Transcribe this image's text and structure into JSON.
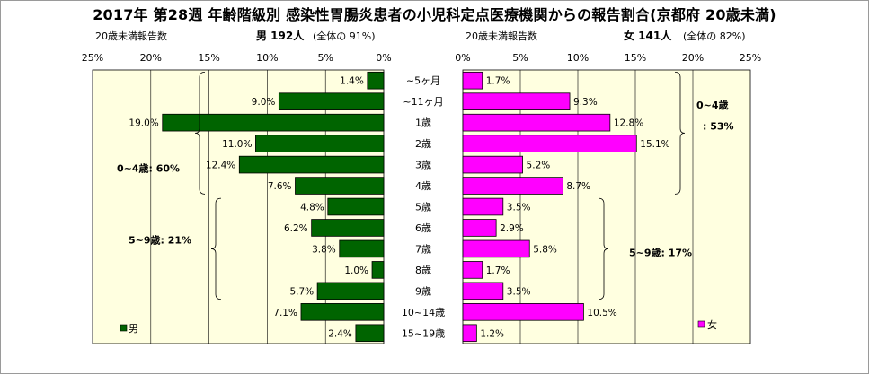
{
  "title": "2017年 第28週 年齢階級別 感染性胃腸炎患者の小児科定点医療機関からの報告割合(京都府 20歳未満)",
  "colors": {
    "male": "#006400",
    "female": "#ff00ff",
    "panel_bg": "#ffffe0",
    "border": "#000000"
  },
  "chart_data": [
    {
      "type": "bar",
      "orientation": "horizontal",
      "direction": "right-to-left",
      "header_left": "20歳未満報告数",
      "header_right": "男 192人",
      "header_share": "(全体の 91%)",
      "legend": "男",
      "xlim": [
        0,
        25
      ],
      "ticks": [
        "25%",
        "20%",
        "15%",
        "10%",
        "5%",
        "0%"
      ],
      "tick_values": [
        25,
        20,
        15,
        10,
        5,
        0
      ],
      "categories": [
        "~5ヶ月",
        "~11ヶ月",
        "1歳",
        "2歳",
        "3歳",
        "4歳",
        "5歳",
        "6歳",
        "7歳",
        "8歳",
        "9歳",
        "10~14歳",
        "15~19歳"
      ],
      "values": [
        1.4,
        9.0,
        19.0,
        11.0,
        12.4,
        7.6,
        4.8,
        6.2,
        3.8,
        1.0,
        5.7,
        7.1,
        2.4
      ],
      "labels": [
        "1.4%",
        "9.0%",
        "19.0%",
        "11.0%",
        "12.4%",
        "7.6%",
        "4.8%",
        "6.2%",
        "3.8%",
        "1.0%",
        "5.7%",
        "7.1%",
        "2.4%"
      ],
      "annotations": [
        {
          "text": "0~4歳: 60%",
          "from": 0,
          "to": 5
        },
        {
          "text": "5~9歳: 21%",
          "from": 6,
          "to": 10
        }
      ]
    },
    {
      "type": "bar",
      "orientation": "horizontal",
      "direction": "left-to-right",
      "header_left": "20歳未満報告数",
      "header_right": "女 141人",
      "header_share": "(全体の 82%)",
      "legend": "女",
      "xlim": [
        0,
        25
      ],
      "ticks": [
        "0%",
        "5%",
        "10%",
        "15%",
        "20%",
        "25%"
      ],
      "tick_values": [
        0,
        5,
        10,
        15,
        20,
        25
      ],
      "categories": [
        "~5ヶ月",
        "~11ヶ月",
        "1歳",
        "2歳",
        "3歳",
        "4歳",
        "5歳",
        "6歳",
        "7歳",
        "8歳",
        "9歳",
        "10~14歳",
        "15~19歳"
      ],
      "values": [
        1.7,
        9.3,
        12.8,
        15.1,
        5.2,
        8.7,
        3.5,
        2.9,
        5.8,
        1.7,
        3.5,
        10.5,
        1.2
      ],
      "labels": [
        "1.7%",
        "9.3%",
        "12.8%",
        "15.1%",
        "5.2%",
        "8.7%",
        "3.5%",
        "2.9%",
        "5.8%",
        "1.7%",
        "3.5%",
        "10.5%",
        "1.2%"
      ],
      "annotations": [
        {
          "text": "0~4歳",
          "text2": ": 53%",
          "from": 0,
          "to": 5
        },
        {
          "text": "5~9歳: 17%",
          "from": 6,
          "to": 10
        }
      ]
    }
  ]
}
